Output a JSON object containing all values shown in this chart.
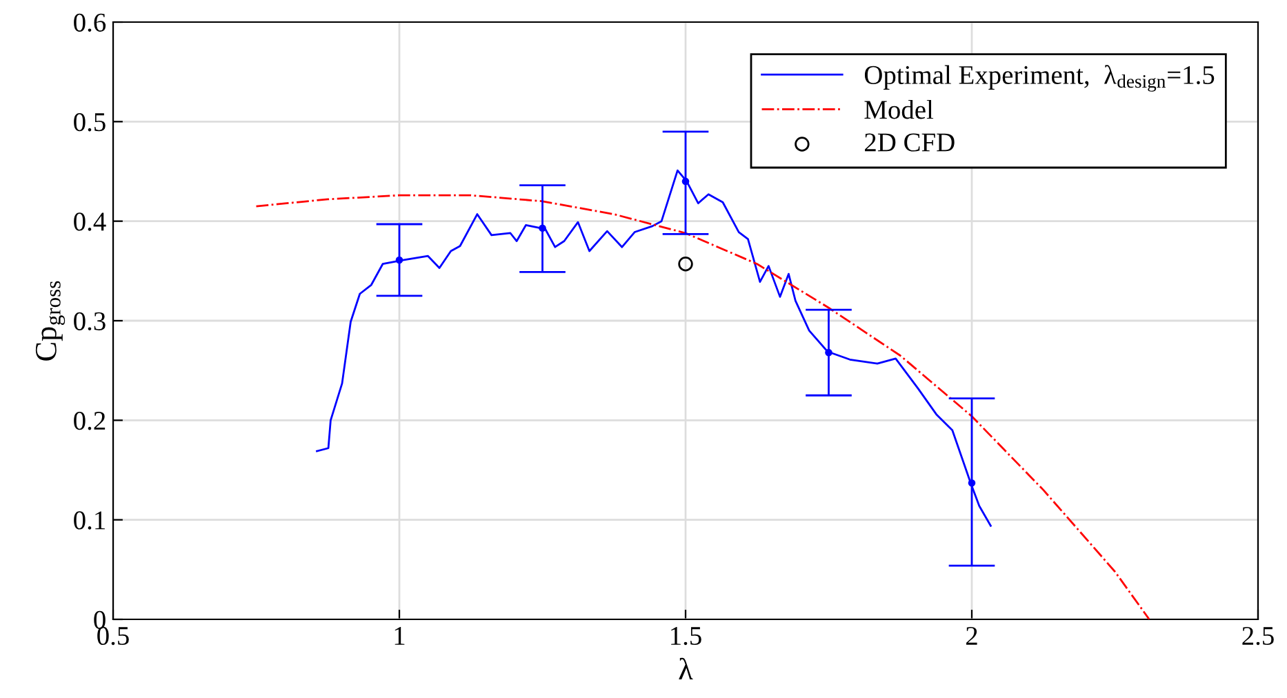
{
  "chart_data": {
    "type": "line",
    "xlabel": "λ",
    "ylabel": "Cp$_{gross}$",
    "xlim": [
      0.5,
      2.5
    ],
    "xticks": [
      0.5,
      1,
      1.5,
      2,
      2.5
    ],
    "ylim": [
      0,
      0.6
    ],
    "yticks": [
      0,
      0.1,
      0.2,
      0.3,
      0.4,
      0.5,
      0.6
    ],
    "grid": true,
    "legend": "top right",
    "series": [
      {
        "name": "Optimal Experiment,  λ$_{design}$=1.5",
        "color": "#0000ff",
        "line_style": "solid",
        "x": [
          0.856,
          0.876,
          0.88,
          0.9,
          0.915,
          0.931,
          0.951,
          0.971,
          1.008,
          1.05,
          1.07,
          1.09,
          1.106,
          1.136,
          1.161,
          1.194,
          1.205,
          1.221,
          1.255,
          1.272,
          1.288,
          1.312,
          1.332,
          1.363,
          1.389,
          1.411,
          1.442,
          1.458,
          1.486,
          1.502,
          1.522,
          1.54,
          1.565,
          1.593,
          1.609,
          1.63,
          1.645,
          1.665,
          1.68,
          1.692,
          1.716,
          1.748,
          1.787,
          1.835,
          1.867,
          1.906,
          1.938,
          1.966,
          1.998,
          2.013,
          2.033
        ],
        "values": [
          0.169,
          0.172,
          0.2,
          0.237,
          0.299,
          0.327,
          0.336,
          0.357,
          0.361,
          0.365,
          0.353,
          0.37,
          0.375,
          0.407,
          0.386,
          0.388,
          0.38,
          0.396,
          0.392,
          0.374,
          0.38,
          0.399,
          0.37,
          0.39,
          0.374,
          0.389,
          0.395,
          0.4,
          0.451,
          0.44,
          0.418,
          0.427,
          0.419,
          0.389,
          0.382,
          0.339,
          0.355,
          0.324,
          0.347,
          0.32,
          0.29,
          0.269,
          0.261,
          0.257,
          0.262,
          0.232,
          0.206,
          0.19,
          0.137,
          0.114,
          0.094
        ]
      },
      {
        "name": "Model",
        "color": "#ff0000",
        "line_style": "dashdot",
        "x": [
          0.75,
          0.875,
          1.0,
          1.125,
          1.25,
          1.375,
          1.5,
          1.625,
          1.75,
          1.875,
          2.0,
          2.125,
          2.25,
          2.31
        ],
        "values": [
          0.415,
          0.422,
          0.426,
          0.426,
          0.42,
          0.407,
          0.388,
          0.357,
          0.313,
          0.265,
          0.204,
          0.13,
          0.048,
          0.0
        ]
      },
      {
        "name": "2D CFD",
        "type": "scatter",
        "color": "#000000",
        "marker": "open_circle",
        "x": [
          1.5
        ],
        "values": [
          0.357
        ]
      },
      {
        "type": "scatter",
        "color": "#0000ff",
        "marker": "dot",
        "x": [
          1.0,
          1.25,
          1.5,
          1.75,
          2.0
        ],
        "values": [
          0.361,
          0.393,
          0.44,
          0.268,
          0.137
        ],
        "errors": [
          [
            0.325,
            0.397
          ],
          [
            0.349,
            0.436
          ],
          [
            0.387,
            0.49
          ],
          [
            0.225,
            0.311
          ],
          [
            0.054,
            0.222
          ]
        ]
      }
    ]
  }
}
